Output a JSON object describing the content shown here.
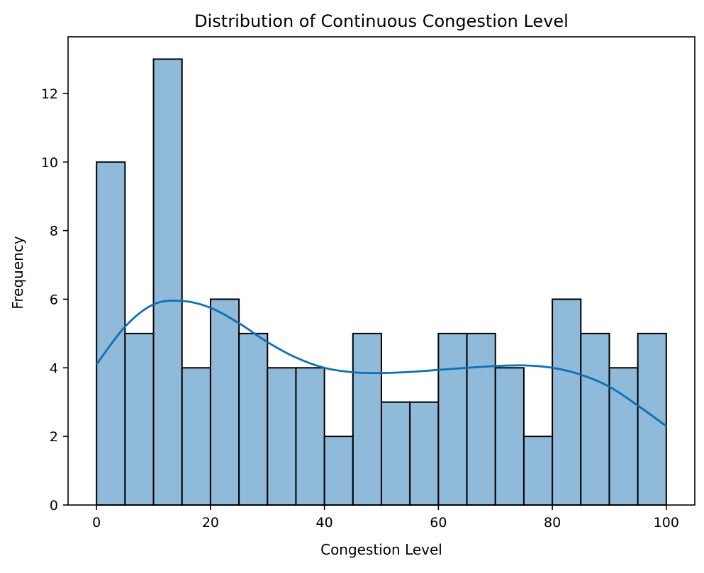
{
  "chart_data": {
    "type": "bar",
    "subtype": "histogram-with-kde",
    "title": "Distribution of Continuous Congestion Level",
    "xlabel": "Congestion Level",
    "ylabel": "Frequency",
    "xlim": [
      -5,
      105
    ],
    "ylim": [
      0,
      13.65
    ],
    "x_ticks": [
      0,
      20,
      40,
      60,
      80,
      100
    ],
    "y_ticks": [
      0,
      2,
      4,
      6,
      8,
      10,
      12
    ],
    "grid": false,
    "legend": "none",
    "bin_width": 5,
    "bins": [
      {
        "start": 0,
        "end": 5,
        "count": 10
      },
      {
        "start": 5,
        "end": 10,
        "count": 5
      },
      {
        "start": 10,
        "end": 15,
        "count": 13
      },
      {
        "start": 15,
        "end": 20,
        "count": 4
      },
      {
        "start": 20,
        "end": 25,
        "count": 6
      },
      {
        "start": 25,
        "end": 30,
        "count": 5
      },
      {
        "start": 30,
        "end": 35,
        "count": 4
      },
      {
        "start": 35,
        "end": 40,
        "count": 4
      },
      {
        "start": 40,
        "end": 45,
        "count": 2
      },
      {
        "start": 45,
        "end": 50,
        "count": 5
      },
      {
        "start": 50,
        "end": 55,
        "count": 3
      },
      {
        "start": 55,
        "end": 60,
        "count": 3
      },
      {
        "start": 60,
        "end": 65,
        "count": 5
      },
      {
        "start": 65,
        "end": 70,
        "count": 5
      },
      {
        "start": 70,
        "end": 75,
        "count": 4
      },
      {
        "start": 75,
        "end": 80,
        "count": 2
      },
      {
        "start": 80,
        "end": 85,
        "count": 6
      },
      {
        "start": 85,
        "end": 90,
        "count": 5
      },
      {
        "start": 90,
        "end": 95,
        "count": 4
      },
      {
        "start": 95,
        "end": 100,
        "count": 5
      }
    ],
    "kde": {
      "x": [
        0,
        5,
        10,
        15,
        20,
        25,
        30,
        35,
        40,
        45,
        50,
        55,
        60,
        65,
        70,
        75,
        80,
        85,
        90,
        95,
        100
      ],
      "y": [
        4.1,
        5.2,
        5.85,
        5.95,
        5.75,
        5.3,
        4.75,
        4.3,
        4.0,
        3.87,
        3.85,
        3.88,
        3.94,
        4.0,
        4.05,
        4.07,
        4.0,
        3.8,
        3.45,
        2.9,
        2.3
      ]
    },
    "colors": {
      "bar_fill": "#8fbad9",
      "bar_edge": "#000000",
      "kde_line": "#0f6fb4"
    }
  }
}
